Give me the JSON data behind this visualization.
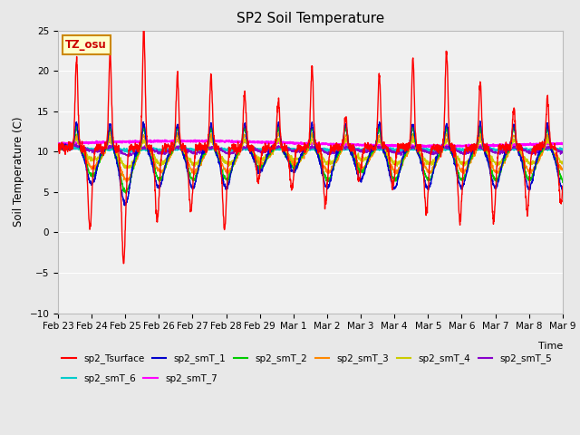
{
  "title": "SP2 Soil Temperature",
  "ylabel": "Soil Temperature (C)",
  "xlabel": "Time",
  "annotation_text": "TZ_osu",
  "annotation_bg": "#ffffcc",
  "annotation_border": "#cc8800",
  "ylim": [
    -10,
    25
  ],
  "yticks": [
    -10,
    -5,
    0,
    5,
    10,
    15,
    20,
    25
  ],
  "xtick_labels": [
    "Feb 23",
    "Feb 24",
    "Feb 25",
    "Feb 26",
    "Feb 27",
    "Feb 28",
    "Feb 29",
    "Mar 1",
    "Mar 2",
    "Mar 3",
    "Mar 4",
    "Mar 5",
    "Mar 6",
    "Mar 7",
    "Mar 8",
    "Mar 9"
  ],
  "plot_bg": "#f0f0f0",
  "fig_bg": "#e8e8e8",
  "grid_color": "#ffffff",
  "series_colors": {
    "sp2_Tsurface": "#ff0000",
    "sp2_smT_1": "#0000cc",
    "sp2_smT_2": "#00cc00",
    "sp2_smT_3": "#ff8800",
    "sp2_smT_4": "#cccc00",
    "sp2_smT_5": "#8800cc",
    "sp2_smT_6": "#00cccc",
    "sp2_smT_7": "#ff00ff"
  },
  "legend_row1": [
    {
      "label": "sp2_Tsurface",
      "color": "#ff0000"
    },
    {
      "label": "sp2_smT_1",
      "color": "#0000cc"
    },
    {
      "label": "sp2_smT_2",
      "color": "#00cc00"
    },
    {
      "label": "sp2_smT_3",
      "color": "#ff8800"
    },
    {
      "label": "sp2_smT_4",
      "color": "#cccc00"
    },
    {
      "label": "sp2_smT_5",
      "color": "#8800cc"
    }
  ],
  "legend_row2": [
    {
      "label": "sp2_smT_6",
      "color": "#00cccc"
    },
    {
      "label": "sp2_smT_7",
      "color": "#ff00ff"
    }
  ]
}
